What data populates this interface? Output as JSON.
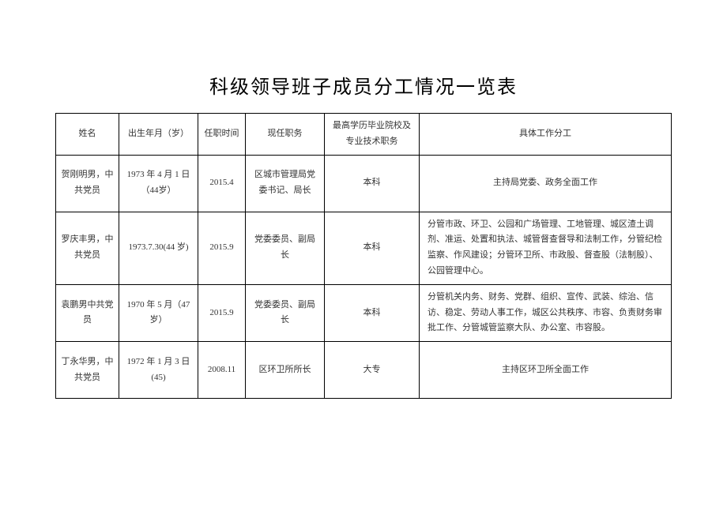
{
  "title": "科级领导班子成员分工情况一览表",
  "columns": [
    "姓名",
    "出生年月（岁）",
    "任职时间",
    "现任职务",
    "最高学历毕业院校及专业技术职务",
    "具体工作分工"
  ],
  "rows": [
    {
      "name": "贺刚明男，中共党员",
      "dob": "1973 年 4 月 1 日（44岁）",
      "tenure": "2015.4",
      "position": "区城市管理局党委书记、局长",
      "education": "本科",
      "duties": "主持局党委、政务全面工作",
      "duties_align": "center"
    },
    {
      "name": "罗庆丰男，中共党员",
      "dob": "1973.7.30(44 岁)",
      "tenure": "2015.9",
      "position": "党委委员、副局长",
      "education": "本科",
      "duties": "分管市政、环卫、公园和广场管理、工地管理、城区渣土调剂、准运、处置和执法、城管督查督导和法制工作，分管纪检监察、作风建设；分管环卫所、市政股、督查股（法制股）、公园管理中心。",
      "duties_align": "left"
    },
    {
      "name": "袁鹏男中共党员",
      "dob": "1970 年 5 月（47岁）",
      "tenure": "2015.9",
      "position": "党委委员、副局长",
      "education": "本科",
      "duties": "分管机关内务、财务、党群、组织、宣传、武装、综治、信访、稳定、劳动人事工作，城区公共秩序、市容、负责财务审批工作、分管城管监察大队、办公室、市容股。",
      "duties_align": "left"
    },
    {
      "name": "丁永华男，中共党员",
      "dob": "1972 年 1 月 3 日(45)",
      "tenure": "2008.11",
      "position": "区环卫所所长",
      "education": "大专",
      "duties": "主持区环卫所全面工作",
      "duties_align": "center"
    }
  ],
  "style": {
    "title_fontsize": 24,
    "cell_fontsize": 11,
    "border_color": "#000000",
    "text_color": "#333333",
    "background_color": "#ffffff",
    "font_family": "SimSun"
  }
}
